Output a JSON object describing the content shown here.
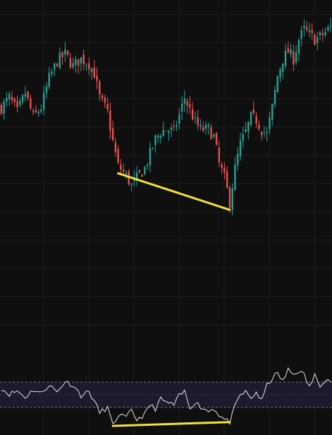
{
  "colors": {
    "background": "#0f0f0f",
    "grid": "#1d1d1d",
    "up_candle": "#26a69a",
    "down_candle": "#ef5350",
    "rsi_line": "#e6e6e6",
    "rsi_band": "#1d1a2b",
    "rsi_level_lines": "#777777",
    "divergence_line": "#f5e13a"
  },
  "chart_data": [
    {
      "type": "candlestick",
      "title": "",
      "xlabel": "",
      "ylabel": "",
      "grid": true,
      "x_count": 125,
      "ylim": [
        0,
        100
      ],
      "close_path": [
        [
          0,
          66
        ],
        [
          3,
          70
        ],
        [
          6,
          64
        ],
        [
          9,
          72
        ],
        [
          12,
          62
        ],
        [
          15,
          66
        ],
        [
          18,
          78
        ],
        [
          21,
          85
        ],
        [
          24,
          88
        ],
        [
          27,
          83
        ],
        [
          30,
          86
        ],
        [
          33,
          84
        ],
        [
          35,
          80
        ],
        [
          37,
          70
        ],
        [
          40,
          64
        ],
        [
          42,
          52
        ],
        [
          44,
          42
        ],
        [
          47,
          38
        ],
        [
          49,
          34
        ],
        [
          51,
          37
        ],
        [
          54,
          41
        ],
        [
          56,
          47
        ],
        [
          58,
          53
        ],
        [
          60,
          56
        ],
        [
          62,
          57
        ],
        [
          65,
          56
        ],
        [
          67,
          63
        ],
        [
          69,
          70
        ],
        [
          71,
          65
        ],
        [
          73,
          60
        ],
        [
          75,
          57
        ],
        [
          78,
          57
        ],
        [
          80,
          54
        ],
        [
          82,
          43
        ],
        [
          84,
          37
        ],
        [
          86,
          27
        ],
        [
          88,
          41
        ],
        [
          90,
          51
        ],
        [
          92,
          56
        ],
        [
          94,
          62
        ],
        [
          96,
          61
        ],
        [
          98,
          57
        ],
        [
          100,
          55
        ],
        [
          102,
          66
        ],
        [
          104,
          79
        ],
        [
          106,
          86
        ],
        [
          108,
          89
        ],
        [
          110,
          86
        ],
        [
          112,
          94
        ],
        [
          114,
          98
        ],
        [
          116,
          96
        ],
        [
          118,
          94
        ],
        [
          120,
          95
        ],
        [
          122,
          97
        ],
        [
          124,
          99
        ]
      ]
    },
    {
      "type": "line",
      "title": "",
      "xlabel": "",
      "ylabel": "",
      "grid": true,
      "x_count": 125,
      "ylim": [
        0,
        100
      ],
      "upper_band": 70,
      "lower_band": 30,
      "path": [
        [
          0,
          60
        ],
        [
          3,
          51
        ],
        [
          6,
          56
        ],
        [
          9,
          46
        ],
        [
          12,
          58
        ],
        [
          15,
          52
        ],
        [
          18,
          66
        ],
        [
          21,
          54
        ],
        [
          24,
          71
        ],
        [
          27,
          65
        ],
        [
          30,
          49
        ],
        [
          33,
          55
        ],
        [
          35,
          40
        ],
        [
          37,
          22
        ],
        [
          40,
          30
        ],
        [
          42,
          1
        ],
        [
          44,
          18
        ],
        [
          47,
          14
        ],
        [
          49,
          25
        ],
        [
          51,
          11
        ],
        [
          54,
          19
        ],
        [
          56,
          34
        ],
        [
          58,
          28
        ],
        [
          60,
          43
        ],
        [
          62,
          38
        ],
        [
          65,
          34
        ],
        [
          67,
          48
        ],
        [
          69,
          55
        ],
        [
          71,
          30
        ],
        [
          73,
          39
        ],
        [
          75,
          31
        ],
        [
          78,
          24
        ],
        [
          80,
          29
        ],
        [
          82,
          18
        ],
        [
          84,
          11
        ],
        [
          86,
          7
        ],
        [
          88,
          31
        ],
        [
          90,
          50
        ],
        [
          92,
          54
        ],
        [
          94,
          44
        ],
        [
          96,
          54
        ],
        [
          98,
          40
        ],
        [
          100,
          65
        ],
        [
          102,
          76
        ],
        [
          104,
          84
        ],
        [
          106,
          71
        ],
        [
          108,
          89
        ],
        [
          110,
          82
        ],
        [
          112,
          88
        ],
        [
          114,
          81
        ],
        [
          116,
          62
        ],
        [
          118,
          80
        ],
        [
          120,
          66
        ],
        [
          122,
          75
        ],
        [
          124,
          72
        ]
      ]
    }
  ]
}
